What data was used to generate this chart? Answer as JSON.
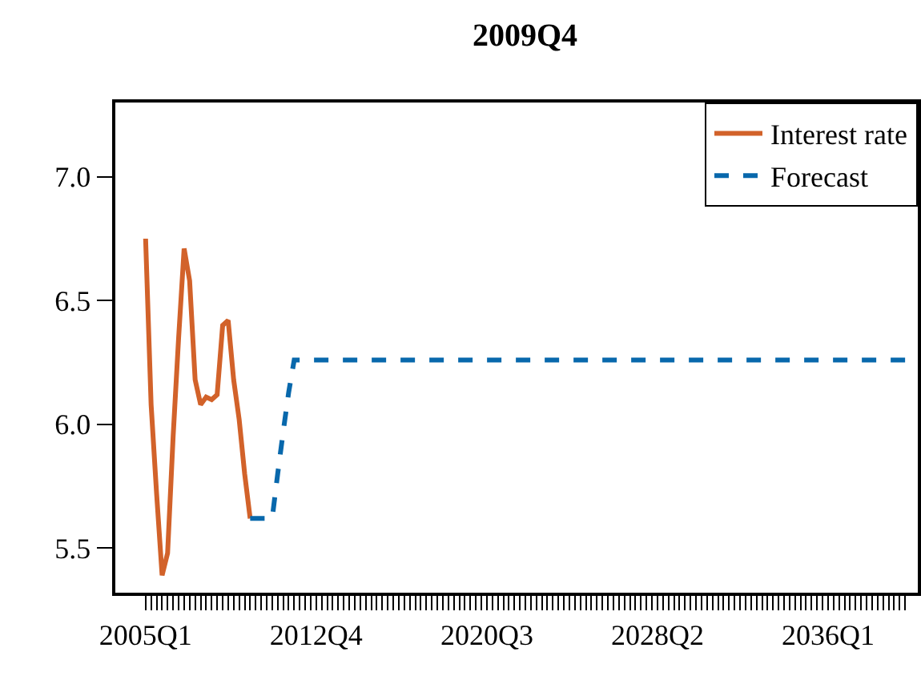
{
  "chart_data": {
    "type": "line",
    "title": "2009Q4",
    "categories": [
      "2005Q1",
      null,
      null,
      null,
      null,
      null,
      null,
      null,
      null,
      null,
      null,
      null,
      null,
      null,
      null,
      null,
      null,
      null,
      null,
      null,
      null,
      null,
      null,
      null,
      null,
      null,
      null,
      null,
      null,
      null,
      null,
      "2012Q4",
      null,
      null,
      null,
      null,
      null,
      null,
      null,
      null,
      null,
      null,
      null,
      null,
      null,
      null,
      null,
      null,
      null,
      null,
      null,
      null,
      null,
      null,
      null,
      null,
      null,
      null,
      null,
      null,
      null,
      null,
      "2020Q3",
      null,
      null,
      null,
      null,
      null,
      null,
      null,
      null,
      null,
      null,
      null,
      null,
      null,
      null,
      null,
      null,
      null,
      null,
      null,
      null,
      null,
      null,
      null,
      null,
      null,
      null,
      null,
      null,
      null,
      null,
      "2028Q2",
      null,
      null,
      null,
      null,
      null,
      null,
      null,
      null,
      null,
      null,
      null,
      null,
      null,
      null,
      null,
      null,
      null,
      null,
      null,
      null,
      null,
      null,
      null,
      null,
      null,
      null,
      null,
      null,
      null,
      null,
      "2036Q1",
      null,
      null,
      null,
      null,
      null,
      null,
      null,
      null,
      null,
      null,
      null,
      null,
      null,
      null
    ],
    "series": [
      {
        "name": "Interest rate",
        "color": "#d2622a",
        "line_style": "solid",
        "values": [
          6.75,
          6.08,
          5.72,
          5.39,
          5.48,
          5.95,
          6.35,
          6.71,
          6.58,
          6.18,
          6.08,
          6.11,
          6.1,
          6.12,
          6.4,
          6.42,
          6.18,
          6.02,
          5.8,
          5.62,
          null,
          null,
          null,
          null,
          null,
          null,
          null,
          null,
          null,
          null,
          null,
          null,
          null,
          null,
          null,
          null,
          null,
          null,
          null,
          null,
          null,
          null,
          null,
          null,
          null,
          null,
          null,
          null,
          null,
          null,
          null,
          null,
          null,
          null,
          null,
          null,
          null,
          null,
          null,
          null,
          null,
          null,
          null,
          null,
          null,
          null,
          null,
          null,
          null,
          null,
          null,
          null,
          null,
          null,
          null,
          null,
          null,
          null,
          null,
          null,
          null,
          null,
          null,
          null,
          null,
          null,
          null,
          null,
          null,
          null,
          null,
          null,
          null,
          null,
          null,
          null,
          null,
          null,
          null,
          null,
          null,
          null,
          null,
          null,
          null,
          null,
          null,
          null,
          null,
          null,
          null,
          null,
          null,
          null,
          null,
          null,
          null,
          null,
          null,
          null,
          null,
          null,
          null,
          null,
          null,
          null,
          null,
          null,
          null,
          null,
          null,
          null,
          null,
          null,
          null,
          null,
          null,
          null,
          null
        ]
      },
      {
        "name": "Forecast",
        "color": "#0868ac",
        "line_style": "dashed",
        "values": [
          null,
          null,
          null,
          null,
          null,
          null,
          null,
          null,
          null,
          null,
          null,
          null,
          null,
          null,
          null,
          null,
          null,
          null,
          null,
          5.62,
          5.62,
          5.62,
          5.62,
          5.62,
          5.8,
          5.97,
          6.13,
          6.26,
          6.26,
          6.26,
          6.26,
          6.26,
          6.26,
          6.26,
          6.26,
          6.26,
          6.26,
          6.26,
          6.26,
          6.26,
          6.26,
          6.26,
          6.26,
          6.26,
          6.26,
          6.26,
          6.26,
          6.26,
          6.26,
          6.26,
          6.26,
          6.26,
          6.26,
          6.26,
          6.26,
          6.26,
          6.26,
          6.26,
          6.26,
          6.26,
          6.26,
          6.26,
          6.26,
          6.26,
          6.26,
          6.26,
          6.26,
          6.26,
          6.26,
          6.26,
          6.26,
          6.26,
          6.26,
          6.26,
          6.26,
          6.26,
          6.26,
          6.26,
          6.26,
          6.26,
          6.26,
          6.26,
          6.26,
          6.26,
          6.26,
          6.26,
          6.26,
          6.26,
          6.26,
          6.26,
          6.26,
          6.26,
          6.26,
          6.26,
          6.26,
          6.26,
          6.26,
          6.26,
          6.26,
          6.26,
          6.26,
          6.26,
          6.26,
          6.26,
          6.26,
          6.26,
          6.26,
          6.26,
          6.26,
          6.26,
          6.26,
          6.26,
          6.26,
          6.26,
          6.26,
          6.26,
          6.26,
          6.26,
          6.26,
          6.26,
          6.26,
          6.26,
          6.26,
          6.26,
          6.26,
          6.26,
          6.26,
          6.26,
          6.26,
          6.26,
          6.26,
          6.26,
          6.26,
          6.26,
          6.26,
          6.26,
          6.26,
          6.26,
          6.26
        ]
      }
    ],
    "ylim": [
      5.32,
      7.3
    ],
    "yticks": [
      {
        "value": 5.5,
        "label": "5.5"
      },
      {
        "value": 6,
        "label": "6.0"
      },
      {
        "value": 6.5,
        "label": "6.5"
      },
      {
        "value": 7,
        "label": "7.0"
      }
    ],
    "legend": "top right",
    "marker": "none"
  }
}
